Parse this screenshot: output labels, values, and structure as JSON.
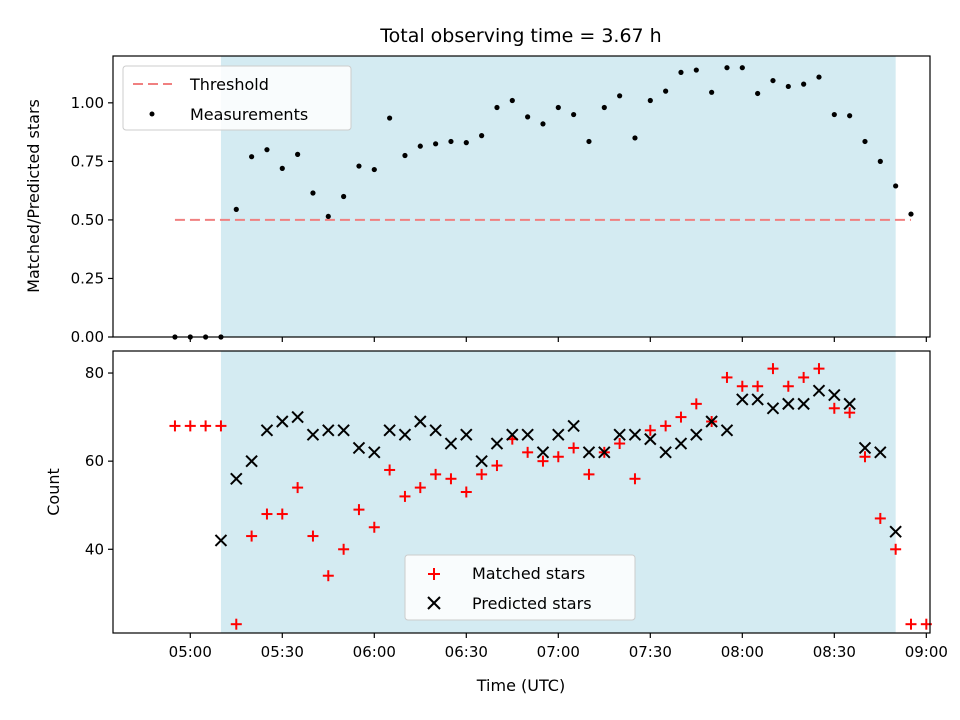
{
  "chart_data": [
    {
      "type": "scatter",
      "title": "Total observing time = 3.67 h",
      "xlabel": "",
      "ylabel": "Matched/Predicted stars",
      "ylim": [
        0.0,
        1.2
      ],
      "yticks": [
        "0.00",
        "0.25",
        "0.50",
        "0.75",
        "1.00"
      ],
      "x_range_minutes": [
        4.58,
        9.02
      ],
      "shaded_span": [
        "05:10",
        "08:50"
      ],
      "threshold": {
        "name": "Threshold",
        "value": 0.5,
        "x_start": "04:55",
        "x_end": "08:55",
        "color": "#f08080"
      },
      "legend": {
        "placement": "upper-left",
        "entries": [
          "Threshold",
          "Measurements"
        ]
      },
      "series": [
        {
          "name": "Measurements",
          "color": "#000000",
          "x": [
            "04:55",
            "05:00",
            "05:05",
            "05:10",
            "05:15",
            "05:20",
            "05:25",
            "05:30",
            "05:35",
            "05:40",
            "05:45",
            "05:50",
            "05:55",
            "06:00",
            "06:05",
            "06:10",
            "06:15",
            "06:20",
            "06:25",
            "06:30",
            "06:35",
            "06:40",
            "06:45",
            "06:50",
            "06:55",
            "07:00",
            "07:05",
            "07:10",
            "07:15",
            "07:20",
            "07:25",
            "07:30",
            "07:35",
            "07:40",
            "07:45",
            "07:50",
            "07:55",
            "08:00",
            "08:05",
            "08:10",
            "08:15",
            "08:20",
            "08:25",
            "08:30",
            "08:35",
            "08:40",
            "08:45",
            "08:50",
            "08:55"
          ],
          "y": [
            0.0,
            0.0,
            0.0,
            0.0,
            0.545,
            0.77,
            0.8,
            0.72,
            0.78,
            0.615,
            0.515,
            0.6,
            0.73,
            0.715,
            0.935,
            0.775,
            0.815,
            0.825,
            0.835,
            0.83,
            0.86,
            0.98,
            1.01,
            0.94,
            0.91,
            0.98,
            0.95,
            0.835,
            0.98,
            1.03,
            0.85,
            1.01,
            1.05,
            1.13,
            1.14,
            1.045,
            1.15,
            1.15,
            1.04,
            1.095,
            1.07,
            1.08,
            1.11,
            0.95,
            0.945,
            0.835,
            0.75,
            0.645,
            0.525
          ]
        }
      ]
    },
    {
      "type": "scatter",
      "title": "",
      "xlabel": "Time (UTC)",
      "ylabel": "Count",
      "ylim": [
        21,
        85
      ],
      "yticks": [
        "40",
        "60",
        "80"
      ],
      "xticks": [
        "05:00",
        "05:30",
        "06:00",
        "06:30",
        "07:00",
        "07:30",
        "08:00",
        "08:30",
        "09:00"
      ],
      "shaded_span": [
        "05:10",
        "08:50"
      ],
      "legend": {
        "placement": "lower-center",
        "entries": [
          "Matched stars",
          "Predicted stars"
        ]
      },
      "series": [
        {
          "name": "Matched stars",
          "marker": "+",
          "color": "#ff0000",
          "x": [
            "04:55",
            "05:00",
            "05:05",
            "05:10",
            "05:15",
            "05:20",
            "05:25",
            "05:30",
            "05:35",
            "05:40",
            "05:45",
            "05:50",
            "05:55",
            "06:00",
            "06:05",
            "06:10",
            "06:15",
            "06:20",
            "06:25",
            "06:30",
            "06:35",
            "06:40",
            "06:45",
            "06:50",
            "06:55",
            "07:00",
            "07:05",
            "07:10",
            "07:15",
            "07:20",
            "07:25",
            "07:30",
            "07:35",
            "07:40",
            "07:45",
            "07:50",
            "07:55",
            "08:00",
            "08:05",
            "08:10",
            "08:15",
            "08:20",
            "08:25",
            "08:30",
            "08:35",
            "08:40",
            "08:45",
            "08:50",
            "08:55",
            "09:00"
          ],
          "y": [
            68,
            68,
            68,
            68,
            23,
            43,
            48,
            48,
            54,
            43,
            34,
            40,
            49,
            45,
            58,
            52,
            54,
            57,
            56,
            53,
            57,
            59,
            65,
            62,
            60,
            61,
            63,
            57,
            62,
            64,
            56,
            67,
            68,
            70,
            73,
            69,
            79,
            77,
            77,
            81,
            77,
            79,
            81,
            72,
            71,
            61,
            47,
            40,
            23,
            23
          ]
        },
        {
          "name": "Predicted stars",
          "marker": "x",
          "color": "#000000",
          "x": [
            "05:10",
            "05:15",
            "05:20",
            "05:25",
            "05:30",
            "05:35",
            "05:40",
            "05:45",
            "05:50",
            "05:55",
            "06:00",
            "06:05",
            "06:10",
            "06:15",
            "06:20",
            "06:25",
            "06:30",
            "06:35",
            "06:40",
            "06:45",
            "06:50",
            "06:55",
            "07:00",
            "07:05",
            "07:10",
            "07:15",
            "07:20",
            "07:25",
            "07:30",
            "07:35",
            "07:40",
            "07:45",
            "07:50",
            "07:55",
            "08:00",
            "08:05",
            "08:10",
            "08:15",
            "08:20",
            "08:25",
            "08:30",
            "08:35",
            "08:40",
            "08:45",
            "08:50"
          ],
          "y": [
            42,
            56,
            60,
            67,
            69,
            70,
            66,
            67,
            67,
            63,
            62,
            67,
            66,
            69,
            67,
            64,
            66,
            60,
            64,
            66,
            66,
            62,
            66,
            68,
            62,
            62,
            66,
            66,
            65,
            62,
            64,
            66,
            69,
            67,
            74,
            74,
            72,
            73,
            73,
            76,
            75,
            73,
            63,
            62,
            44
          ]
        }
      ]
    }
  ]
}
